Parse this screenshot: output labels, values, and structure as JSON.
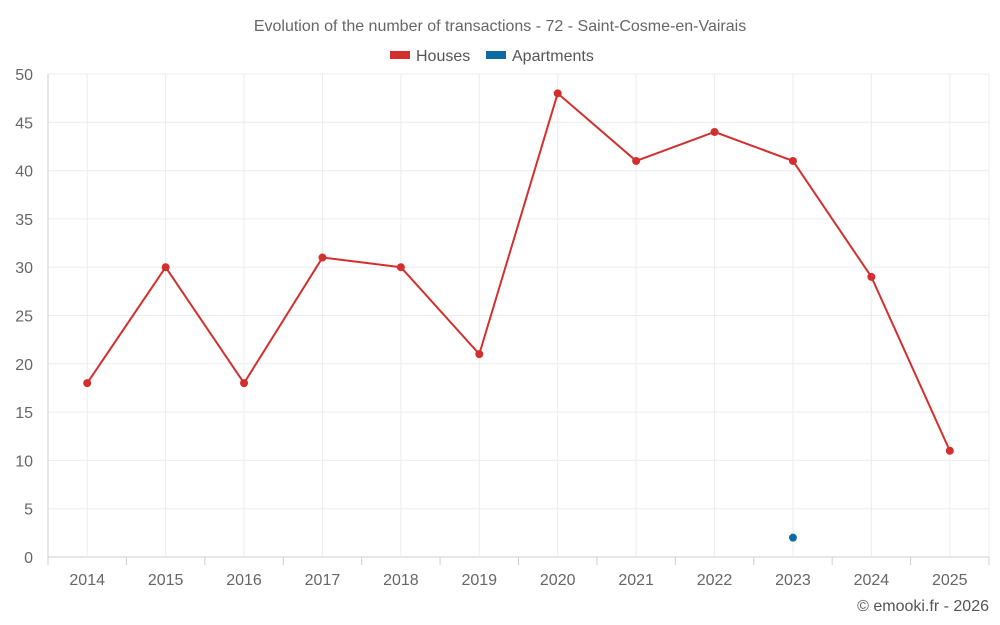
{
  "chart_data": {
    "type": "line",
    "title": "Evolution of the number of transactions - 72 - Saint-Cosme-en-Vairais",
    "categories": [
      "2014",
      "2015",
      "2016",
      "2017",
      "2018",
      "2019",
      "2020",
      "2021",
      "2022",
      "2023",
      "2024",
      "2025"
    ],
    "series": [
      {
        "name": "Houses",
        "color": "#d32f2f",
        "values": [
          18,
          30,
          18,
          31,
          30,
          21,
          48,
          41,
          44,
          41,
          29,
          11
        ]
      },
      {
        "name": "Apartments",
        "color": "#0e6aa0",
        "values": [
          null,
          null,
          null,
          null,
          null,
          null,
          null,
          null,
          null,
          2,
          null,
          null
        ]
      }
    ],
    "ylim": [
      0,
      50
    ],
    "yticks": [
      "0",
      "5",
      "10",
      "15",
      "20",
      "25",
      "30",
      "35",
      "40",
      "45",
      "50"
    ],
    "grid": true,
    "legend_position": "top-center",
    "xlabel": "",
    "ylabel": ""
  },
  "credit": "© emooki.fr - 2026"
}
